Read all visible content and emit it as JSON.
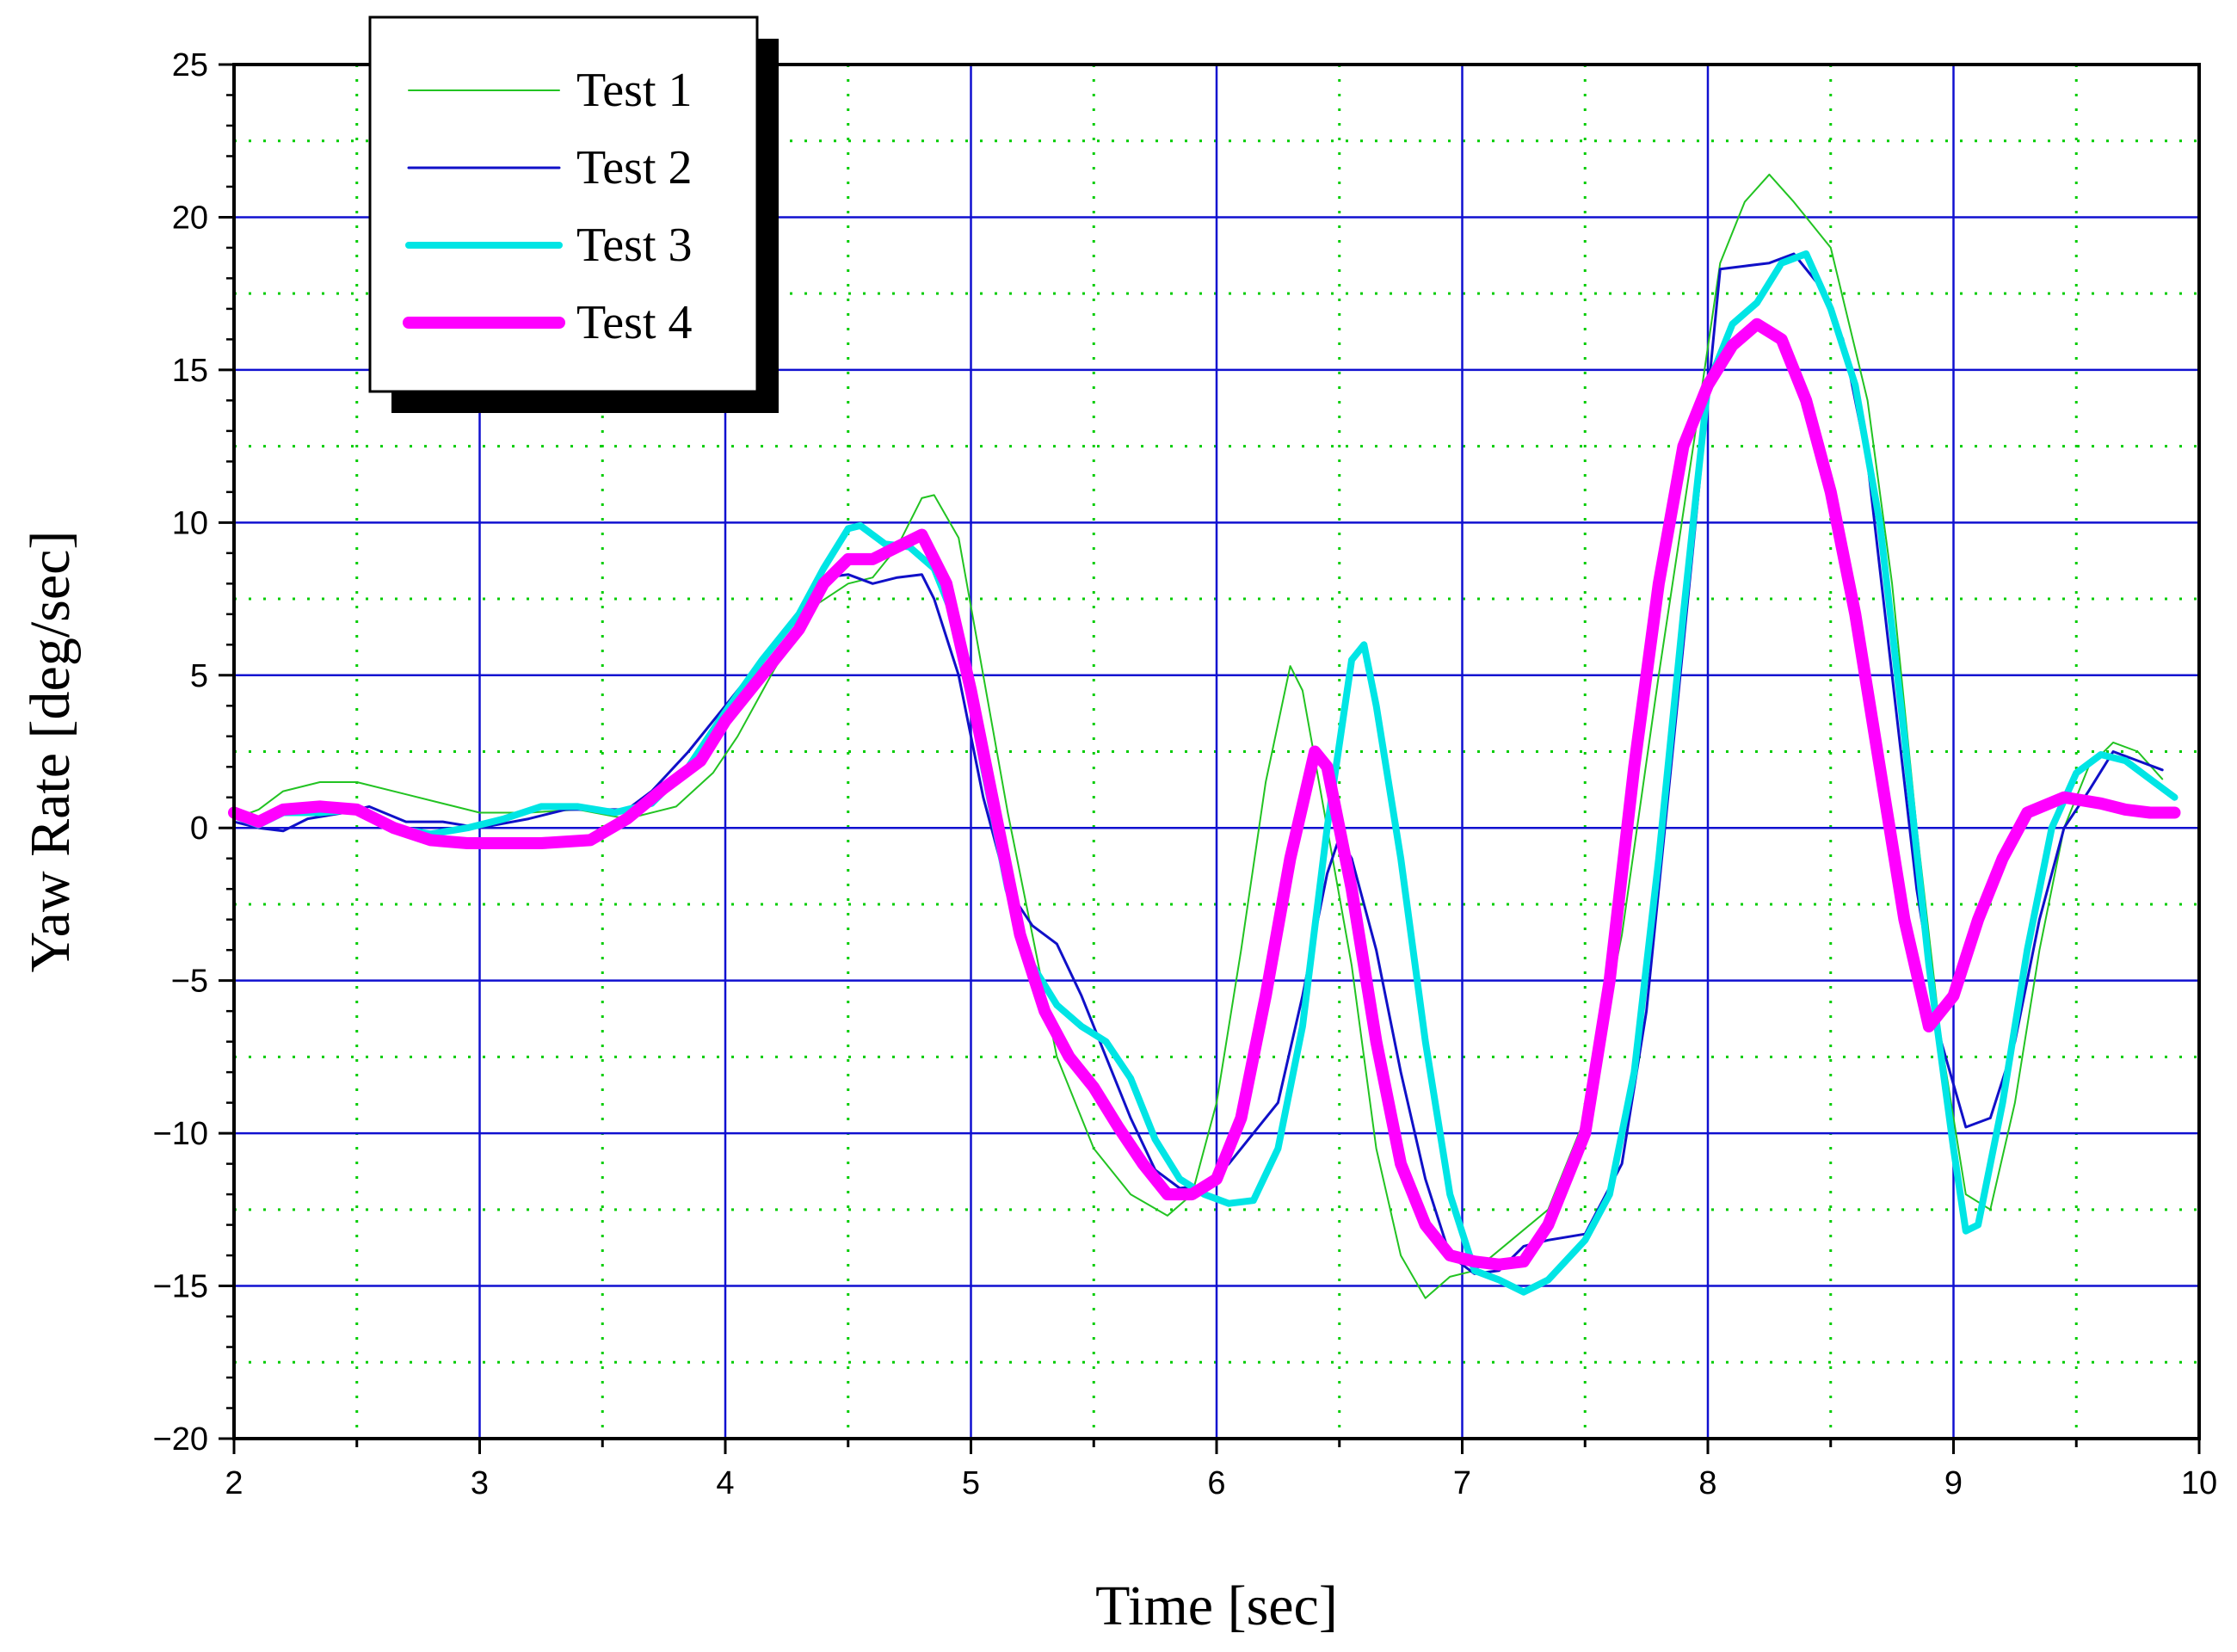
{
  "chart_data": {
    "type": "line",
    "xlabel": "Time [sec]",
    "ylabel": "Yaw Rate [deg/sec]",
    "xlim": [
      2,
      10
    ],
    "ylim": [
      -20,
      25
    ],
    "xticks": [
      2,
      3,
      4,
      5,
      6,
      7,
      8,
      9,
      10
    ],
    "yticks": [
      -20,
      -15,
      -10,
      -5,
      0,
      5,
      10,
      15,
      20,
      25
    ],
    "xtick_labels": [
      "2",
      "3",
      "4",
      "5",
      "6",
      "7",
      "8",
      "9",
      "10"
    ],
    "ytick_labels": [
      "−20",
      "−15",
      "−10",
      "−5",
      "0",
      "5",
      "10",
      "15",
      "20",
      "25"
    ],
    "grid": {
      "major": true,
      "minor": true,
      "major_color": "#1010d0",
      "minor_color": "#00cc00"
    },
    "legend_position": "top-left",
    "series": [
      {
        "name": "Test 1",
        "color": "#22c322",
        "width": 2,
        "points": [
          [
            2.0,
            0.3
          ],
          [
            2.1,
            0.6
          ],
          [
            2.2,
            1.2
          ],
          [
            2.35,
            1.5
          ],
          [
            2.5,
            1.5
          ],
          [
            2.7,
            1.1
          ],
          [
            2.9,
            0.7
          ],
          [
            3.0,
            0.5
          ],
          [
            3.2,
            0.5
          ],
          [
            3.4,
            0.6
          ],
          [
            3.6,
            0.3
          ],
          [
            3.8,
            0.7
          ],
          [
            3.95,
            1.8
          ],
          [
            4.05,
            3.0
          ],
          [
            4.2,
            5.2
          ],
          [
            4.35,
            7.2
          ],
          [
            4.5,
            8.0
          ],
          [
            4.6,
            8.2
          ],
          [
            4.7,
            9.2
          ],
          [
            4.8,
            10.8
          ],
          [
            4.85,
            10.9
          ],
          [
            4.95,
            9.5
          ],
          [
            5.05,
            5.0
          ],
          [
            5.15,
            0.5
          ],
          [
            5.25,
            -3.5
          ],
          [
            5.35,
            -7.5
          ],
          [
            5.5,
            -10.5
          ],
          [
            5.65,
            -12.0
          ],
          [
            5.8,
            -12.7
          ],
          [
            5.9,
            -12.0
          ],
          [
            6.0,
            -9.0
          ],
          [
            6.1,
            -4.0
          ],
          [
            6.2,
            1.5
          ],
          [
            6.3,
            5.3
          ],
          [
            6.35,
            4.5
          ],
          [
            6.45,
            0.0
          ],
          [
            6.55,
            -4.5
          ],
          [
            6.65,
            -10.5
          ],
          [
            6.75,
            -14.0
          ],
          [
            6.85,
            -15.4
          ],
          [
            6.95,
            -14.7
          ],
          [
            7.05,
            -14.5
          ],
          [
            7.2,
            -13.5
          ],
          [
            7.35,
            -12.5
          ],
          [
            7.5,
            -9.5
          ],
          [
            7.65,
            -3.5
          ],
          [
            7.8,
            5.0
          ],
          [
            7.95,
            13.0
          ],
          [
            8.05,
            18.5
          ],
          [
            8.15,
            20.5
          ],
          [
            8.25,
            21.4
          ],
          [
            8.35,
            20.5
          ],
          [
            8.5,
            19.0
          ],
          [
            8.65,
            14.0
          ],
          [
            8.75,
            8.0
          ],
          [
            8.85,
            0.0
          ],
          [
            8.95,
            -7.0
          ],
          [
            9.05,
            -12.0
          ],
          [
            9.15,
            -12.5
          ],
          [
            9.25,
            -9.0
          ],
          [
            9.35,
            -4.0
          ],
          [
            9.45,
            0.0
          ],
          [
            9.55,
            2.0
          ],
          [
            9.65,
            2.8
          ],
          [
            9.75,
            2.5
          ],
          [
            9.85,
            1.6
          ]
        ]
      },
      {
        "name": "Test 2",
        "color": "#1010c8",
        "width": 3,
        "points": [
          [
            2.0,
            0.2
          ],
          [
            2.1,
            0.0
          ],
          [
            2.2,
            -0.1
          ],
          [
            2.3,
            0.3
          ],
          [
            2.45,
            0.5
          ],
          [
            2.55,
            0.7
          ],
          [
            2.7,
            0.2
          ],
          [
            2.85,
            0.2
          ],
          [
            3.0,
            0.0
          ],
          [
            3.2,
            0.3
          ],
          [
            3.35,
            0.6
          ],
          [
            3.5,
            0.6
          ],
          [
            3.6,
            0.6
          ],
          [
            3.7,
            1.2
          ],
          [
            3.85,
            2.5
          ],
          [
            4.0,
            4.0
          ],
          [
            4.15,
            5.5
          ],
          [
            4.3,
            7.0
          ],
          [
            4.4,
            8.2
          ],
          [
            4.5,
            8.3
          ],
          [
            4.6,
            8.0
          ],
          [
            4.7,
            8.2
          ],
          [
            4.8,
            8.3
          ],
          [
            4.85,
            7.5
          ],
          [
            4.95,
            5.0
          ],
          [
            5.05,
            1.0
          ],
          [
            5.15,
            -2.0
          ],
          [
            5.25,
            -3.2
          ],
          [
            5.35,
            -3.8
          ],
          [
            5.45,
            -5.5
          ],
          [
            5.55,
            -7.5
          ],
          [
            5.65,
            -9.5
          ],
          [
            5.75,
            -11.2
          ],
          [
            5.85,
            -11.8
          ],
          [
            5.95,
            -11.7
          ],
          [
            6.05,
            -11.0
          ],
          [
            6.15,
            -10.0
          ],
          [
            6.25,
            -9.0
          ],
          [
            6.35,
            -5.5
          ],
          [
            6.45,
            -1.5
          ],
          [
            6.5,
            -0.3
          ],
          [
            6.55,
            -1.0
          ],
          [
            6.65,
            -4.0
          ],
          [
            6.75,
            -8.0
          ],
          [
            6.85,
            -11.5
          ],
          [
            6.95,
            -14.0
          ],
          [
            7.05,
            -14.6
          ],
          [
            7.15,
            -14.5
          ],
          [
            7.25,
            -13.7
          ],
          [
            7.35,
            -13.5
          ],
          [
            7.5,
            -13.3
          ],
          [
            7.65,
            -11.0
          ],
          [
            7.75,
            -6.0
          ],
          [
            7.85,
            2.0
          ],
          [
            7.95,
            10.0
          ],
          [
            8.05,
            18.3
          ],
          [
            8.15,
            18.4
          ],
          [
            8.25,
            18.5
          ],
          [
            8.35,
            18.8
          ],
          [
            8.45,
            17.8
          ],
          [
            8.55,
            16.0
          ],
          [
            8.65,
            12.0
          ],
          [
            8.75,
            5.0
          ],
          [
            8.85,
            -2.0
          ],
          [
            8.95,
            -7.0
          ],
          [
            9.05,
            -9.8
          ],
          [
            9.15,
            -9.5
          ],
          [
            9.25,
            -7.0
          ],
          [
            9.35,
            -3.0
          ],
          [
            9.45,
            0.0
          ],
          [
            9.55,
            1.2
          ],
          [
            9.65,
            2.5
          ],
          [
            9.75,
            2.2
          ],
          [
            9.85,
            1.9
          ]
        ]
      },
      {
        "name": "Test 3",
        "color": "#00e5e5",
        "width": 8,
        "points": [
          [
            2.0,
            0.4
          ],
          [
            2.1,
            0.1
          ],
          [
            2.2,
            0.5
          ],
          [
            2.35,
            0.5
          ],
          [
            2.5,
            0.6
          ],
          [
            2.65,
            0.0
          ],
          [
            2.8,
            -0.2
          ],
          [
            2.95,
            0.0
          ],
          [
            3.1,
            0.3
          ],
          [
            3.25,
            0.7
          ],
          [
            3.4,
            0.7
          ],
          [
            3.55,
            0.5
          ],
          [
            3.7,
            0.8
          ],
          [
            3.85,
            2.0
          ],
          [
            4.0,
            3.8
          ],
          [
            4.15,
            5.5
          ],
          [
            4.3,
            7.0
          ],
          [
            4.4,
            8.5
          ],
          [
            4.5,
            9.8
          ],
          [
            4.55,
            9.9
          ],
          [
            4.65,
            9.3
          ],
          [
            4.75,
            9.2
          ],
          [
            4.85,
            8.5
          ],
          [
            4.95,
            6.5
          ],
          [
            5.05,
            2.0
          ],
          [
            5.15,
            -2.0
          ],
          [
            5.25,
            -4.5
          ],
          [
            5.35,
            -5.8
          ],
          [
            5.45,
            -6.5
          ],
          [
            5.55,
            -7.0
          ],
          [
            5.65,
            -8.2
          ],
          [
            5.75,
            -10.2
          ],
          [
            5.85,
            -11.5
          ],
          [
            5.95,
            -12.0
          ],
          [
            6.05,
            -12.3
          ],
          [
            6.15,
            -12.2
          ],
          [
            6.25,
            -10.5
          ],
          [
            6.35,
            -6.5
          ],
          [
            6.45,
            0.0
          ],
          [
            6.55,
            5.5
          ],
          [
            6.6,
            6.0
          ],
          [
            6.65,
            4.0
          ],
          [
            6.75,
            -1.0
          ],
          [
            6.85,
            -7.0
          ],
          [
            6.95,
            -12.0
          ],
          [
            7.05,
            -14.5
          ],
          [
            7.15,
            -14.8
          ],
          [
            7.25,
            -15.2
          ],
          [
            7.35,
            -14.8
          ],
          [
            7.5,
            -13.5
          ],
          [
            7.6,
            -12.0
          ],
          [
            7.7,
            -8.0
          ],
          [
            7.8,
            -1.0
          ],
          [
            7.9,
            7.0
          ],
          [
            8.0,
            14.5
          ],
          [
            8.1,
            16.5
          ],
          [
            8.2,
            17.2
          ],
          [
            8.3,
            18.5
          ],
          [
            8.4,
            18.8
          ],
          [
            8.5,
            17.0
          ],
          [
            8.6,
            14.5
          ],
          [
            8.7,
            10.0
          ],
          [
            8.8,
            3.0
          ],
          [
            8.9,
            -4.5
          ],
          [
            9.0,
            -10.5
          ],
          [
            9.05,
            -13.2
          ],
          [
            9.1,
            -13.0
          ],
          [
            9.2,
            -9.0
          ],
          [
            9.3,
            -4.0
          ],
          [
            9.4,
            0.0
          ],
          [
            9.5,
            1.8
          ],
          [
            9.6,
            2.4
          ],
          [
            9.7,
            2.2
          ],
          [
            9.8,
            1.6
          ],
          [
            9.9,
            1.0
          ]
        ]
      },
      {
        "name": "Test 4",
        "color": "#ff00ff",
        "width": 14,
        "points": [
          [
            2.0,
            0.5
          ],
          [
            2.1,
            0.2
          ],
          [
            2.2,
            0.6
          ],
          [
            2.35,
            0.7
          ],
          [
            2.5,
            0.6
          ],
          [
            2.65,
            0.0
          ],
          [
            2.8,
            -0.4
          ],
          [
            2.95,
            -0.5
          ],
          [
            3.1,
            -0.5
          ],
          [
            3.25,
            -0.5
          ],
          [
            3.45,
            -0.4
          ],
          [
            3.6,
            0.3
          ],
          [
            3.75,
            1.3
          ],
          [
            3.9,
            2.2
          ],
          [
            4.0,
            3.5
          ],
          [
            4.15,
            5.0
          ],
          [
            4.3,
            6.5
          ],
          [
            4.4,
            8.0
          ],
          [
            4.5,
            8.8
          ],
          [
            4.6,
            8.8
          ],
          [
            4.7,
            9.2
          ],
          [
            4.8,
            9.6
          ],
          [
            4.9,
            8.0
          ],
          [
            5.0,
            4.5
          ],
          [
            5.1,
            0.5
          ],
          [
            5.2,
            -3.5
          ],
          [
            5.3,
            -6.0
          ],
          [
            5.4,
            -7.5
          ],
          [
            5.5,
            -8.5
          ],
          [
            5.6,
            -9.8
          ],
          [
            5.7,
            -11.0
          ],
          [
            5.8,
            -12.0
          ],
          [
            5.9,
            -12.0
          ],
          [
            6.0,
            -11.5
          ],
          [
            6.1,
            -9.5
          ],
          [
            6.2,
            -5.5
          ],
          [
            6.3,
            -1.0
          ],
          [
            6.4,
            2.5
          ],
          [
            6.45,
            2.0
          ],
          [
            6.55,
            -2.0
          ],
          [
            6.65,
            -7.0
          ],
          [
            6.75,
            -11.0
          ],
          [
            6.85,
            -13.0
          ],
          [
            6.95,
            -14.0
          ],
          [
            7.05,
            -14.2
          ],
          [
            7.15,
            -14.3
          ],
          [
            7.25,
            -14.2
          ],
          [
            7.35,
            -13.0
          ],
          [
            7.5,
            -10.0
          ],
          [
            7.6,
            -5.0
          ],
          [
            7.7,
            2.0
          ],
          [
            7.8,
            8.0
          ],
          [
            7.9,
            12.5
          ],
          [
            8.0,
            14.5
          ],
          [
            8.1,
            15.8
          ],
          [
            8.2,
            16.5
          ],
          [
            8.3,
            16.0
          ],
          [
            8.4,
            14.0
          ],
          [
            8.5,
            11.0
          ],
          [
            8.6,
            7.0
          ],
          [
            8.7,
            2.0
          ],
          [
            8.8,
            -3.0
          ],
          [
            8.9,
            -6.5
          ],
          [
            9.0,
            -5.5
          ],
          [
            9.1,
            -3.0
          ],
          [
            9.2,
            -1.0
          ],
          [
            9.3,
            0.5
          ],
          [
            9.45,
            1.0
          ],
          [
            9.6,
            0.8
          ],
          [
            9.7,
            0.6
          ],
          [
            9.8,
            0.5
          ],
          [
            9.9,
            0.5
          ]
        ]
      }
    ]
  }
}
